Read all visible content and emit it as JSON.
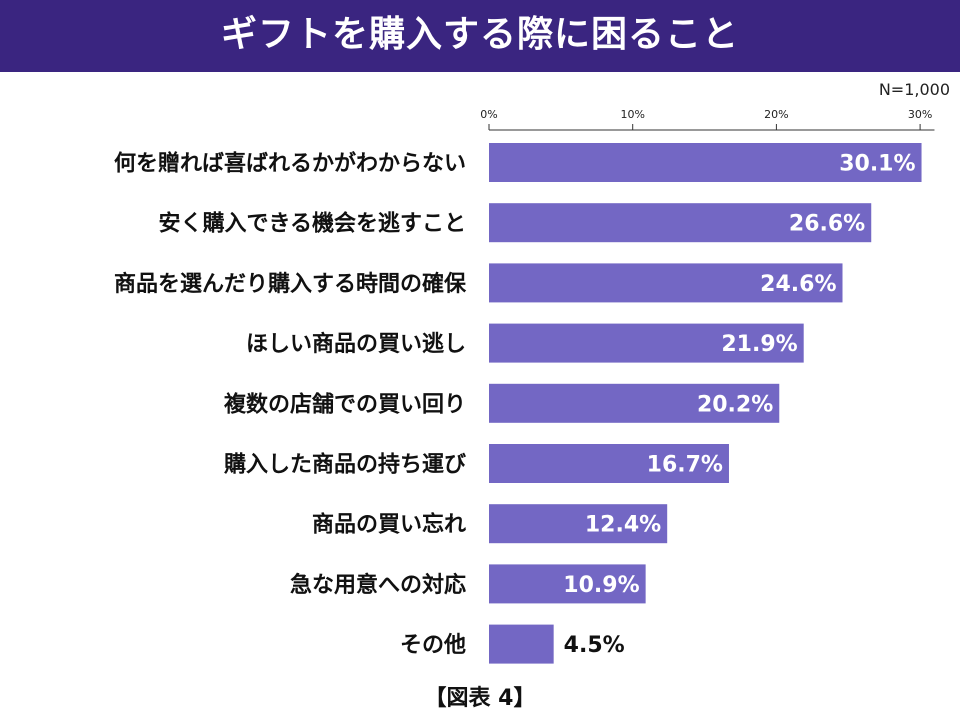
{
  "title": "ギフトを購入する際に困ること",
  "sample_size": "N=1,000",
  "footer": "【図表 4】",
  "colors": {
    "header_bg": "#3a2580",
    "bar": "#7367c4",
    "axis": "#333333"
  },
  "chart_data": {
    "type": "bar",
    "orientation": "horizontal",
    "title": "ギフトを購入する際に困ること",
    "categories": [
      "何を贈れば喜ばれるかがわからない",
      "安く購入できる機会を逃すこと",
      "商品を選んだり購入する時間の確保",
      "ほしい商品の買い逃し",
      "複数の店舗での買い回り",
      "購入した商品の持ち運び",
      "商品の買い忘れ",
      "急な用意への対応",
      "その他"
    ],
    "values": [
      30.1,
      26.6,
      24.6,
      21.9,
      20.2,
      16.7,
      12.4,
      10.9,
      4.5
    ],
    "value_labels": [
      "30.1%",
      "26.6%",
      "24.6%",
      "21.9%",
      "20.2%",
      "16.7%",
      "12.4%",
      "10.9%",
      "4.5%"
    ],
    "xlim": [
      0,
      31
    ],
    "ticks": [
      0,
      10,
      20,
      30
    ],
    "tick_labels": [
      "0%",
      "10%",
      "20%",
      "30%"
    ],
    "axis_position": "top",
    "grid": false,
    "legend": "none"
  }
}
